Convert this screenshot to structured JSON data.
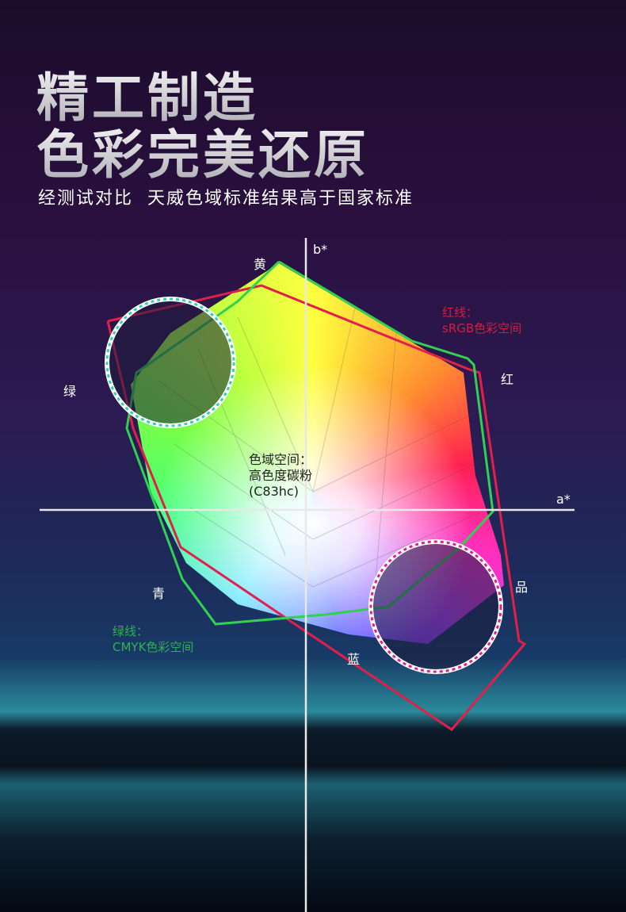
{
  "headline": {
    "line1": "精工制造",
    "line2": "色彩完美还原"
  },
  "subtitle": "经测试对比  天威色域标准结果高于国家标准",
  "diagram": {
    "axis_x": "a*",
    "axis_y": "b*",
    "colors": {
      "yellow": "黄",
      "green": "绿",
      "red": "红",
      "magenta": "品",
      "cyan": "青",
      "blue": "蓝"
    },
    "center_label": [
      "色域空间：",
      "高色度碳粉",
      "(C83hc)"
    ],
    "red_line_label": [
      "红线：",
      "sRGB色彩空间"
    ],
    "green_line_label": [
      "绿线：",
      "CMYK色彩空间"
    ],
    "line_colors": {
      "srgb": "#e0204a",
      "cmyk": "#30d050"
    }
  }
}
